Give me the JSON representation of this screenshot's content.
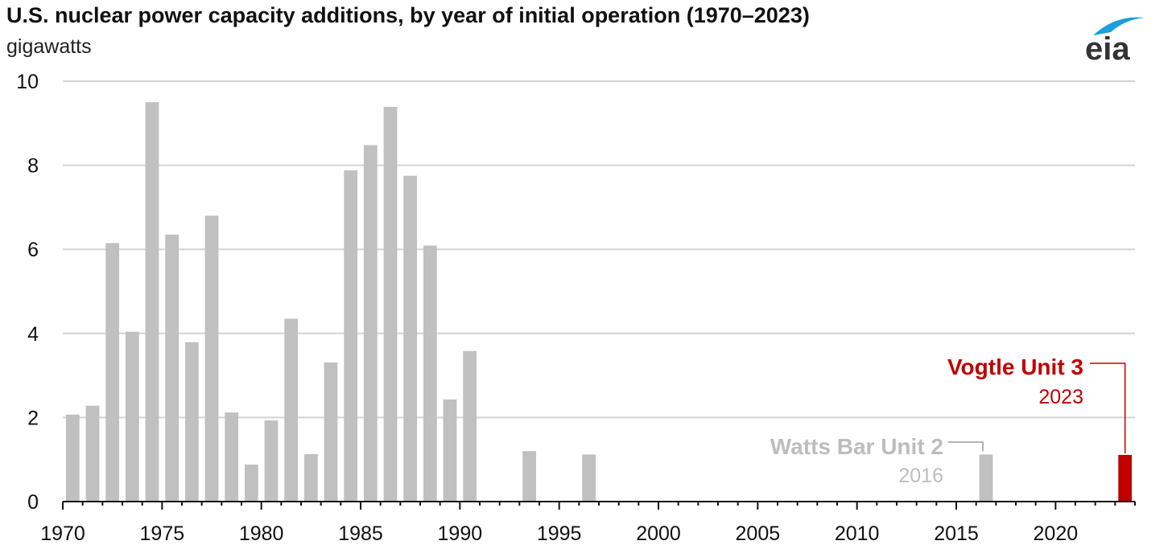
{
  "chart_data": {
    "type": "bar",
    "title": "U.S. nuclear power capacity additions, by year of initial operation (1970–2023)",
    "ylabel": "gigawatts",
    "xlabel": "",
    "ylim": [
      0,
      10
    ],
    "xlim": [
      1970,
      2023
    ],
    "yticks": [
      0,
      2,
      4,
      6,
      8,
      10
    ],
    "xticks": [
      1970,
      1975,
      1980,
      1985,
      1990,
      1995,
      2000,
      2005,
      2010,
      2015,
      2020
    ],
    "grid": "horizontal",
    "x": [
      1970,
      1971,
      1972,
      1973,
      1974,
      1975,
      1976,
      1977,
      1978,
      1979,
      1980,
      1981,
      1982,
      1983,
      1984,
      1985,
      1986,
      1987,
      1988,
      1989,
      1990,
      1993,
      1996,
      2016,
      2023
    ],
    "values": [
      2.07,
      2.28,
      6.15,
      4.04,
      9.5,
      6.35,
      3.79,
      6.8,
      2.12,
      0.88,
      1.93,
      4.35,
      1.13,
      3.31,
      7.88,
      8.48,
      9.39,
      7.75,
      6.09,
      2.43,
      3.58,
      1.2,
      1.12,
      1.12,
      1.11
    ],
    "bar_color": "#c0c0c0",
    "highlight_color": "#c00000",
    "annotations": [
      {
        "year": 2023,
        "label": "Vogtle Unit 3",
        "sublabel": "2023",
        "color": "#c00000"
      },
      {
        "year": 2016,
        "label": "Watts Bar Unit 2",
        "sublabel": "2016",
        "color": "#bdbdbd"
      }
    ]
  },
  "logo": {
    "text": "eia",
    "icon": "eia-logo-icon",
    "arc_color": "#1a9fd8"
  }
}
